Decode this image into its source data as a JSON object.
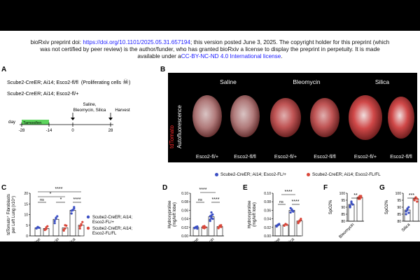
{
  "header": {
    "line1_pre": "bioRxiv preprint doi: ",
    "doi": "https://doi.org/10.1101/2025.05.31.657194",
    "line1_post": "; this version posted June 3, 2025. The copyright holder for this preprint (which",
    "line2": "was not certified by peer review) is the author/funder, who has granted bioRxiv a license to display the preprint in perpetuity. It is made",
    "line3_pre": "available under a",
    "license": "CC-BY-NC-ND 4.0 International license",
    "line3_post": "."
  },
  "panelA": {
    "label": "A",
    "genotype1": "Scube2-CreER; Ai14; Esco2-fl/fl",
    "genotype1_note": "(Proliferating cells",
    "genotype2": "Scube2-CreER; Ai14; Esco2-fl/+",
    "timeline": {
      "day_label": "day",
      "treatment": "Saline,\nBleomycin, Silica",
      "harvest": "Harvest",
      "tamoxifen": "Tamoxifen",
      "days": [
        "-28",
        "-14",
        "0",
        "28"
      ]
    }
  },
  "panelB": {
    "label": "B",
    "side_label_red": "tdTomato",
    "side_label_white": "Autofluorescence",
    "conditions": [
      "Saline",
      "Bleomycin",
      "Silica"
    ],
    "genotypes": [
      "Esco2-fl/+",
      "Esco2-fl/fl",
      "Esco2-fl/+",
      "Esco2-fl/fl",
      "Esco2-fl/+",
      "Esco2-fl/fl"
    ]
  },
  "legend_top": {
    "blue": "Scube2-CreER; Ai14; Esco2-FL/+",
    "red": "Scube2-CreER; Ai14; Esco2-FL/FL"
  },
  "colors": {
    "blue": "#3b4fc4",
    "red": "#d9473a",
    "tamoxifen": "#5dd45d"
  },
  "chart_data": [
    {
      "panel": "C",
      "type": "scatter",
      "ylabel": "tdTomato+ Fibroblasts\nper Left Lung (x10^4)",
      "ylim": [
        0,
        20
      ],
      "yticks": [
        0,
        5,
        10,
        15,
        20
      ],
      "categories": [
        "Saline",
        "Bleomycin",
        "Silica"
      ],
      "series": [
        {
          "name": "Esco2-FL/+",
          "means": [
            3.8,
            7.8,
            12.0
          ],
          "points": [
            [
              3.5,
              4.2,
              3.8,
              3.6,
              4.0
            ],
            [
              6.0,
              8.5,
              9.2,
              7.0,
              8.0
            ],
            [
              10.5,
              12.2,
              13.5,
              11.8,
              12.0,
              12.8
            ]
          ]
        },
        {
          "name": "Esco2-FL/FL",
          "means": [
            3.5,
            3.8,
            5.0
          ],
          "points": [
            [
              2.8,
              3.2,
              4.5,
              3.0,
              4.0
            ],
            [
              2.5,
              3.5,
              4.8,
              3.0,
              5.0
            ],
            [
              3.5,
              5.0,
              6.5,
              4.5,
              5.5
            ]
          ]
        }
      ],
      "significance": [
        {
          "label": "ns",
          "groups": "Saline"
        },
        {
          "label": "*",
          "groups": "Saline vs Bleomycin"
        },
        {
          "label": "*",
          "groups": "Bleomycin"
        },
        {
          "label": "****",
          "groups": "Silica"
        },
        {
          "label": "****",
          "groups": "Saline vs Silica"
        }
      ],
      "legend": [
        "Scube2-CreER; Ai14;\nEsco2-FL/+",
        "Scube2-CreER; Ai14;\nEsco2-FL/FL"
      ]
    },
    {
      "panel": "D",
      "type": "scatter",
      "ylabel": "Hydroxyproline\n(mg/left lobe)",
      "ylim": [
        0,
        0.1
      ],
      "yticks": [
        0.0,
        0.02,
        0.04,
        0.06,
        0.08,
        0.1
      ],
      "categories": [
        "Saline",
        "Bleomycin"
      ],
      "series": [
        {
          "name": "Esco2-FL/+",
          "means": [
            0.02,
            0.045
          ],
          "points": [
            [
              0.018,
              0.02,
              0.022,
              0.019,
              0.021,
              0.017
            ],
            [
              0.035,
              0.042,
              0.05,
              0.046,
              0.055,
              0.04,
              0.038,
              0.048
            ]
          ]
        },
        {
          "name": "Esco2-FL/FL",
          "means": [
            0.021,
            0.022
          ],
          "points": [
            [
              0.019,
              0.023,
              0.02,
              0.022,
              0.018
            ],
            [
              0.018,
              0.022,
              0.025,
              0.02,
              0.024,
              0.021
            ]
          ]
        }
      ],
      "significance": [
        {
          "label": "****",
          "groups": "Saline vs Bleomycin"
        },
        {
          "label": "ns",
          "groups": "Saline"
        },
        {
          "label": "****",
          "groups": "Bleomycin"
        }
      ]
    },
    {
      "panel": "E",
      "type": "scatter",
      "ylabel": "Hydroxyproline\n(mg/left lobe)",
      "ylim": [
        0,
        0.1
      ],
      "yticks": [
        0.0,
        0.02,
        0.04,
        0.06,
        0.08,
        0.1
      ],
      "categories": [
        "Saline",
        "Silica"
      ],
      "series": [
        {
          "name": "Esco2-FL/+",
          "means": [
            0.025,
            0.06
          ],
          "points": [
            [
              0.022,
              0.026,
              0.028,
              0.024,
              0.025
            ],
            [
              0.055,
              0.062,
              0.058,
              0.065,
              0.06,
              0.057
            ]
          ]
        },
        {
          "name": "Esco2-FL/FL",
          "means": [
            0.026,
            0.035
          ],
          "points": [
            [
              0.024,
              0.028,
              0.026,
              0.025
            ],
            [
              0.03,
              0.036,
              0.04,
              0.033,
              0.034,
              0.038
            ]
          ]
        }
      ],
      "significance": [
        {
          "label": "****",
          "groups": "Saline vs Silica"
        },
        {
          "label": "ns",
          "groups": "Saline"
        },
        {
          "label": "****",
          "groups": "Silica"
        }
      ]
    },
    {
      "panel": "F",
      "type": "scatter",
      "ylabel": "SpO2%",
      "ylim": [
        80,
        100
      ],
      "yticks": [
        80,
        85,
        90,
        95,
        100
      ],
      "categories": [
        "Bleomycin"
      ],
      "series": [
        {
          "name": "Esco2-FL/+",
          "means": [
            92
          ],
          "points": [
            [
              91,
              93,
              92,
              90,
              94,
              92
            ]
          ]
        },
        {
          "name": "Esco2-FL/FL",
          "means": [
            97
          ],
          "points": [
            [
              96,
              98,
              97,
              97,
              96,
              98
            ]
          ]
        }
      ],
      "significance": [
        {
          "label": "**",
          "groups": "Bleomycin"
        }
      ]
    },
    {
      "panel": "G",
      "type": "scatter",
      "ylabel": "SpO2%",
      "ylim": [
        80,
        100
      ],
      "yticks": [
        80,
        85,
        90,
        95,
        100
      ],
      "categories": [
        "Silica"
      ],
      "series": [
        {
          "name": "Esco2-FL/+",
          "means": [
            88
          ],
          "points": [
            [
              85,
              88,
              90,
              87,
              89,
              86
            ]
          ]
        },
        {
          "name": "Esco2-FL/FL",
          "means": [
            96
          ],
          "points": [
            [
              95,
              97,
              96,
              96,
              97,
              94
            ]
          ]
        }
      ],
      "significance": [
        {
          "label": "***",
          "groups": "Silica"
        }
      ]
    }
  ]
}
